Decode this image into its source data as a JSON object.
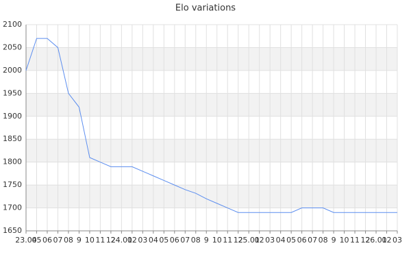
{
  "chart_data": {
    "type": "line",
    "title": "Elo variations",
    "categories": [
      "23.04",
      "05",
      "06",
      "07",
      "08",
      "9",
      "10",
      "11",
      "12",
      "24.01",
      "02",
      "03",
      "04",
      "05",
      "06",
      "07",
      "08",
      "9",
      "10",
      "11",
      "12",
      "25.01",
      "02",
      "03",
      "04",
      "05",
      "06",
      "07",
      "08",
      "9",
      "10",
      "11",
      "12",
      "26.01",
      "02",
      "03"
    ],
    "series": [
      {
        "name": "Elo",
        "color": "#5b8def",
        "values": [
          2000,
          2070,
          2070,
          2050,
          1950,
          1920,
          1810,
          1800,
          1790,
          1790,
          1790,
          1780,
          1770,
          1760,
          1750,
          1740,
          1732,
          1720,
          1710,
          1700,
          1690,
          1690,
          1690,
          1690,
          1690,
          1690,
          1700,
          1700,
          1700,
          1690,
          1690,
          1690,
          1690,
          1690,
          1690,
          1690
        ]
      }
    ],
    "ylim": [
      1650,
      2100
    ],
    "yticks": [
      1650,
      1700,
      1750,
      1800,
      1850,
      1900,
      1950,
      2000,
      2050,
      2100
    ],
    "grid": true
  }
}
